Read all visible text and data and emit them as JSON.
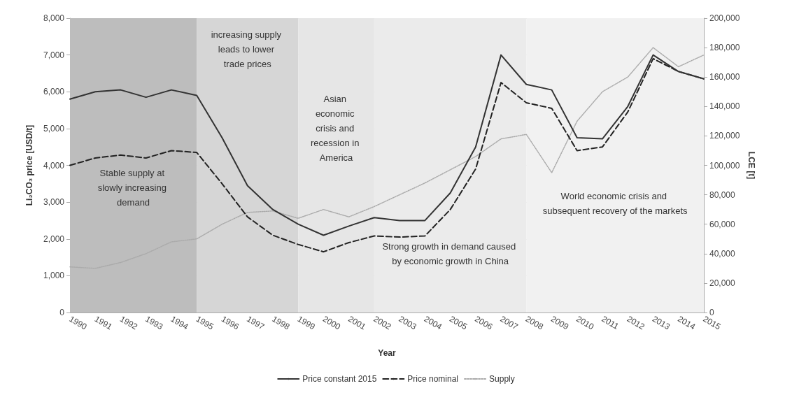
{
  "chart_data": {
    "type": "line",
    "xlabel": "Year",
    "ylabel": "Li₂CO₃ price [USD/t]",
    "y2label": "LCE [t]",
    "categories": [
      "1990",
      "1991",
      "1992",
      "1993",
      "1994",
      "1995",
      "1996",
      "1997",
      "1998",
      "1999",
      "2000",
      "2001",
      "2002",
      "2003",
      "2004",
      "2005",
      "2006",
      "2007",
      "2008",
      "2009",
      "2010",
      "2011",
      "2012",
      "2013",
      "2014",
      "2015"
    ],
    "series": [
      {
        "name": "Price constant 2015",
        "color": "#333333",
        "line_style": "solid",
        "values": [
          5800,
          6000,
          6050,
          5850,
          6050,
          5900,
          4750,
          3450,
          2800,
          2400,
          2100,
          2350,
          2580,
          2500,
          2500,
          3250,
          4500,
          7000,
          6200,
          6050,
          4750,
          4720,
          5600,
          7000,
          6550,
          6350
        ]
      },
      {
        "name": "Price nominal",
        "color": "#222222",
        "line_style": "dashed",
        "values": [
          4000,
          4200,
          4280,
          4200,
          4400,
          4350,
          3500,
          2600,
          2100,
          1850,
          1650,
          1900,
          2080,
          2050,
          2080,
          2800,
          3900,
          6250,
          5700,
          5550,
          4400,
          4500,
          5450,
          6900,
          6550,
          6350
        ]
      },
      {
        "name": "Supply",
        "color": "#aaaaaa",
        "line_style": "dotted",
        "axis": "y2",
        "values": [
          31000,
          30000,
          34000,
          40000,
          48000,
          50000,
          60000,
          68000,
          69000,
          64000,
          70000,
          65000,
          72000,
          80000,
          88000,
          97000,
          106000,
          118000,
          121000,
          95000,
          130000,
          150000,
          160000,
          180000,
          167000,
          175000
        ]
      }
    ],
    "ylim": [
      0,
      8000
    ],
    "yticks": [
      0,
      {
        "value": 1000,
        "label": "1,000"
      },
      {
        "value": 2000,
        "label": "2,000"
      },
      {
        "value": 3000,
        "label": "3,000"
      },
      {
        "value": 4000,
        "label": "4,000"
      },
      {
        "value": 5000,
        "label": "5,000"
      },
      {
        "value": 6000,
        "label": "6,000"
      },
      {
        "value": 7000,
        "label": "7,000"
      },
      {
        "value": 8000,
        "label": "8,000"
      }
    ],
    "y2lim": [
      0,
      200000
    ],
    "y2ticks": [
      0,
      {
        "value": 20000,
        "label": "20,000"
      },
      {
        "value": 40000,
        "label": "40,000"
      },
      {
        "value": 60000,
        "label": "60,000"
      },
      {
        "value": 80000,
        "label": "80,000"
      },
      {
        "value": 100000,
        "label": "100,000"
      },
      {
        "value": 120000,
        "label": "120,000"
      },
      {
        "value": 140000,
        "label": "140,000"
      },
      {
        "value": 160000,
        "label": "160,000"
      },
      {
        "value": 180000,
        "label": "180,000"
      },
      {
        "value": 200000,
        "label": "200,000"
      }
    ],
    "bands": [
      {
        "axis": "x",
        "from": "1990",
        "to": "1995",
        "color": "#bdbdbd",
        "label": "Stable supply at slowly increasing demand"
      },
      {
        "axis": "x",
        "from": "1995",
        "to": "1999",
        "color": "#d6d6d6",
        "label": "increasing supply leads to lower trade prices"
      },
      {
        "axis": "x",
        "from": "1999",
        "to": "2002",
        "color": "#e6e6e6",
        "label": "Asian economic crisis and recession in America"
      },
      {
        "axis": "x",
        "from": "2002",
        "to": "2008",
        "color": "#ebebeb",
        "label": "Strong growth in demand caused by economic growth in China"
      },
      {
        "axis": "x",
        "from": "2008",
        "to": "2015",
        "color": "#f1f1f1",
        "label": "World economic crisis and subsequent recovery of the markets"
      }
    ],
    "grid": "y",
    "legend": "bottom",
    "marker": "none"
  }
}
